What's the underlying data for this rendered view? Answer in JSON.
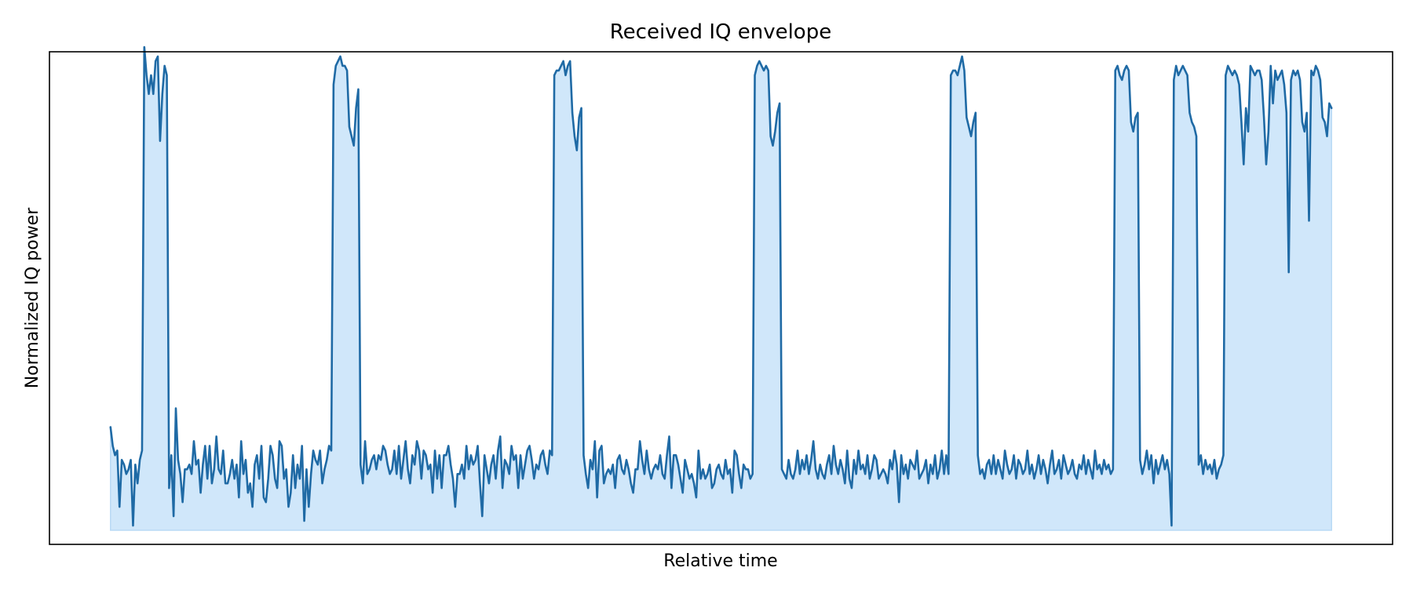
{
  "chart_data": {
    "type": "area",
    "title": "Received IQ envelope",
    "xlabel": "Relative time",
    "ylabel": "Normalized IQ power",
    "xticks": "none",
    "yticks": "none",
    "grid": false,
    "legend": "none",
    "ylim": [
      -0.03,
      1.02
    ],
    "xlim": [
      -50,
      1050
    ],
    "line_color": "#1f6aa5",
    "fill_color": "#d0e7fa",
    "baseline": 0,
    "series": [
      {
        "values": [
          0.22,
          0.18,
          0.16,
          0.17,
          0.05,
          0.15,
          0.14,
          0.12,
          0.13,
          0.15,
          0.01,
          0.14,
          0.1,
          0.15,
          0.17,
          1.03,
          0.97,
          0.93,
          0.97,
          0.93,
          1.0,
          1.01,
          0.83,
          0.93,
          0.99,
          0.97,
          0.09,
          0.16,
          0.03,
          0.26,
          0.15,
          0.12,
          0.06,
          0.13,
          0.13,
          0.14,
          0.12,
          0.19,
          0.14,
          0.15,
          0.08,
          0.14,
          0.18,
          0.11,
          0.18,
          0.1,
          0.13,
          0.2,
          0.13,
          0.12,
          0.17,
          0.1,
          0.1,
          0.12,
          0.15,
          0.11,
          0.14,
          0.07,
          0.19,
          0.12,
          0.15,
          0.08,
          0.1,
          0.05,
          0.14,
          0.16,
          0.11,
          0.18,
          0.07,
          0.06,
          0.11,
          0.18,
          0.16,
          0.11,
          0.09,
          0.19,
          0.18,
          0.11,
          0.13,
          0.05,
          0.08,
          0.16,
          0.09,
          0.14,
          0.11,
          0.18,
          0.02,
          0.13,
          0.05,
          0.12,
          0.17,
          0.15,
          0.14,
          0.17,
          0.1,
          0.13,
          0.15,
          0.18,
          0.17,
          0.95,
          0.99,
          1.0,
          1.01,
          0.99,
          0.99,
          0.98,
          0.86,
          0.84,
          0.82,
          0.9,
          0.94,
          0.14,
          0.1,
          0.19,
          0.12,
          0.13,
          0.15,
          0.16,
          0.13,
          0.16,
          0.15,
          0.18,
          0.17,
          0.14,
          0.12,
          0.13,
          0.17,
          0.12,
          0.18,
          0.11,
          0.15,
          0.19,
          0.13,
          0.1,
          0.16,
          0.14,
          0.19,
          0.17,
          0.11,
          0.17,
          0.16,
          0.13,
          0.14,
          0.08,
          0.17,
          0.11,
          0.16,
          0.09,
          0.16,
          0.16,
          0.18,
          0.14,
          0.11,
          0.05,
          0.12,
          0.12,
          0.14,
          0.11,
          0.18,
          0.13,
          0.16,
          0.14,
          0.15,
          0.18,
          0.1,
          0.03,
          0.16,
          0.13,
          0.1,
          0.14,
          0.16,
          0.11,
          0.17,
          0.2,
          0.09,
          0.15,
          0.14,
          0.12,
          0.18,
          0.15,
          0.16,
          0.09,
          0.16,
          0.11,
          0.14,
          0.17,
          0.18,
          0.15,
          0.11,
          0.14,
          0.13,
          0.16,
          0.17,
          0.14,
          0.12,
          0.17,
          0.16,
          0.97,
          0.98,
          0.98,
          0.99,
          1.0,
          0.97,
          0.99,
          1.0,
          0.89,
          0.84,
          0.81,
          0.88,
          0.9,
          0.16,
          0.12,
          0.09,
          0.15,
          0.13,
          0.19,
          0.07,
          0.17,
          0.18,
          0.1,
          0.12,
          0.13,
          0.12,
          0.14,
          0.09,
          0.15,
          0.16,
          0.13,
          0.12,
          0.15,
          0.13,
          0.1,
          0.08,
          0.13,
          0.13,
          0.19,
          0.15,
          0.12,
          0.17,
          0.13,
          0.11,
          0.13,
          0.14,
          0.13,
          0.16,
          0.12,
          0.11,
          0.16,
          0.2,
          0.09,
          0.16,
          0.16,
          0.14,
          0.11,
          0.08,
          0.15,
          0.13,
          0.11,
          0.12,
          0.1,
          0.07,
          0.17,
          0.11,
          0.13,
          0.11,
          0.12,
          0.14,
          0.09,
          0.1,
          0.13,
          0.14,
          0.12,
          0.11,
          0.15,
          0.12,
          0.13,
          0.08,
          0.17,
          0.16,
          0.12,
          0.09,
          0.14,
          0.13,
          0.13,
          0.11,
          0.12,
          0.97,
          0.99,
          1.0,
          0.99,
          0.98,
          0.99,
          0.98,
          0.84,
          0.82,
          0.85,
          0.89,
          0.91,
          0.13,
          0.12,
          0.11,
          0.15,
          0.12,
          0.11,
          0.13,
          0.17,
          0.12,
          0.15,
          0.13,
          0.16,
          0.12,
          0.15,
          0.19,
          0.13,
          0.11,
          0.14,
          0.12,
          0.11,
          0.14,
          0.16,
          0.12,
          0.18,
          0.14,
          0.12,
          0.15,
          0.13,
          0.1,
          0.17,
          0.11,
          0.09,
          0.15,
          0.12,
          0.17,
          0.13,
          0.14,
          0.12,
          0.16,
          0.11,
          0.13,
          0.16,
          0.15,
          0.11,
          0.12,
          0.13,
          0.12,
          0.1,
          0.15,
          0.13,
          0.17,
          0.14,
          0.06,
          0.16,
          0.12,
          0.14,
          0.11,
          0.15,
          0.14,
          0.13,
          0.17,
          0.11,
          0.12,
          0.13,
          0.15,
          0.1,
          0.14,
          0.12,
          0.16,
          0.11,
          0.13,
          0.17,
          0.12,
          0.16,
          0.12,
          0.97,
          0.98,
          0.98,
          0.97,
          0.99,
          1.01,
          0.98,
          0.88,
          0.86,
          0.84,
          0.87,
          0.89,
          0.16,
          0.12,
          0.13,
          0.11,
          0.14,
          0.15,
          0.12,
          0.16,
          0.12,
          0.15,
          0.13,
          0.11,
          0.17,
          0.14,
          0.12,
          0.13,
          0.16,
          0.11,
          0.15,
          0.14,
          0.12,
          0.13,
          0.17,
          0.12,
          0.14,
          0.11,
          0.13,
          0.16,
          0.12,
          0.15,
          0.13,
          0.1,
          0.14,
          0.17,
          0.12,
          0.13,
          0.15,
          0.11,
          0.16,
          0.14,
          0.12,
          0.13,
          0.15,
          0.12,
          0.11,
          0.14,
          0.13,
          0.16,
          0.12,
          0.15,
          0.13,
          0.11,
          0.17,
          0.13,
          0.14,
          0.12,
          0.15,
          0.13,
          0.14,
          0.12,
          0.13,
          0.98,
          0.99,
          0.97,
          0.96,
          0.98,
          0.99,
          0.98,
          0.87,
          0.85,
          0.88,
          0.89,
          0.15,
          0.12,
          0.14,
          0.17,
          0.13,
          0.16,
          0.1,
          0.15,
          0.12,
          0.14,
          0.16,
          0.13,
          0.15,
          0.12,
          0.01,
          0.96,
          0.99,
          0.97,
          0.98,
          0.99,
          0.98,
          0.97,
          0.89,
          0.87,
          0.86,
          0.84,
          0.14,
          0.16,
          0.12,
          0.15,
          0.13,
          0.14,
          0.12,
          0.15,
          0.11,
          0.13,
          0.14,
          0.16,
          0.97,
          0.99,
          0.98,
          0.97,
          0.98,
          0.97,
          0.95,
          0.87,
          0.78,
          0.9,
          0.85,
          0.99,
          0.98,
          0.97,
          0.98,
          0.98,
          0.96,
          0.88,
          0.78,
          0.85,
          0.99,
          0.91,
          0.98,
          0.96,
          0.97,
          0.98,
          0.95,
          0.89,
          0.55,
          0.96,
          0.98,
          0.97,
          0.98,
          0.96,
          0.87,
          0.85,
          0.89,
          0.66,
          0.98,
          0.97,
          0.99,
          0.98,
          0.96,
          0.88,
          0.87,
          0.84,
          0.91,
          0.9
        ]
      }
    ]
  }
}
